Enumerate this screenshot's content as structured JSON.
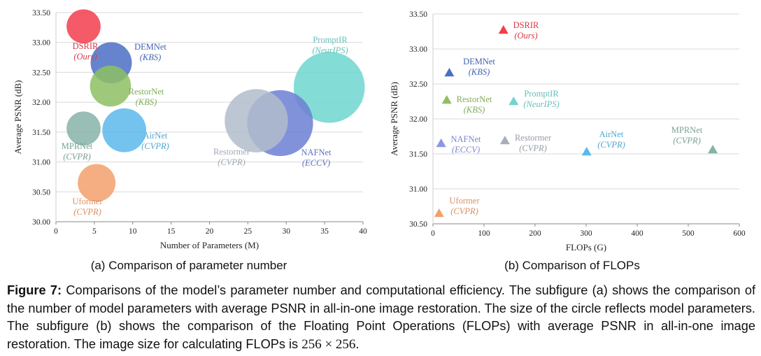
{
  "chart_data": [
    {
      "type": "scatter",
      "variant": "bubble",
      "subcaption": "(a) Comparison of parameter number",
      "xlabel": "Number of Parameters (M)",
      "ylabel": "Average PSNR (dB)",
      "xlim": [
        0,
        40
      ],
      "ylim": [
        30.0,
        33.5
      ],
      "xticks": [
        "0",
        "5",
        "10",
        "15",
        "20",
        "25",
        "30",
        "35",
        "40"
      ],
      "yticks": [
        "30.00",
        "30.50",
        "31.00",
        "31.50",
        "32.00",
        "32.50",
        "33.00",
        "33.50"
      ],
      "grid": "horizontal",
      "points": [
        {
          "name": "DSRIR",
          "venue": "(Ours)",
          "x": 3.6,
          "y": 33.27,
          "size": 3.6,
          "color": "#f23d4c"
        },
        {
          "name": "DEMNet",
          "venue": "(KBS)",
          "x": 7.2,
          "y": 32.66,
          "size": 7.2,
          "color": "#4a6fc4"
        },
        {
          "name": "RestorNet",
          "venue": "(KBS)",
          "x": 7.1,
          "y": 32.27,
          "size": 7.1,
          "color": "#8dbf63"
        },
        {
          "name": "MPRNet",
          "venue": "(CVPR)",
          "x": 3.6,
          "y": 31.56,
          "size": 3.6,
          "color": "#86b3a8"
        },
        {
          "name": "AirNet",
          "venue": "(CVPR)",
          "x": 8.9,
          "y": 31.53,
          "size": 8.9,
          "color": "#5cb8ec"
        },
        {
          "name": "Uformer",
          "venue": "(CVPR)",
          "x": 5.3,
          "y": 30.65,
          "size": 5.3,
          "color": "#f3a06b"
        },
        {
          "name": "NAFNet",
          "venue": "(ECCV)",
          "x": 29.2,
          "y": 31.65,
          "size": 29.2,
          "color": "#6c7fd3"
        },
        {
          "name": "Restormer",
          "venue": "(CVPR)",
          "x": 26.1,
          "y": 31.69,
          "size": 26.1,
          "color": "#b2bccb"
        },
        {
          "name": "PromptIR",
          "venue": "(NeurIPS)",
          "x": 35.6,
          "y": 32.25,
          "size": 35.6,
          "color": "#6fd6cf"
        }
      ]
    },
    {
      "type": "scatter",
      "subcaption": "(b) Comparison of FLOPs",
      "xlabel": "FLOPs (G)",
      "ylabel": "Average PSNR (dB)",
      "xlim": [
        0,
        600
      ],
      "ylim": [
        30.5,
        33.5
      ],
      "xticks": [
        "0",
        "100",
        "200",
        "300",
        "400",
        "500",
        "600"
      ],
      "yticks": [
        "30.50",
        "31.00",
        "31.50",
        "32.00",
        "32.50",
        "33.00",
        "33.50"
      ],
      "grid": "horizontal",
      "marker": "triangle",
      "points": [
        {
          "name": "DSRIR",
          "venue": "(Ours)",
          "x": 138,
          "y": 33.27,
          "color": "#f23d4c"
        },
        {
          "name": "DEMNet",
          "venue": "(KBS)",
          "x": 32,
          "y": 32.66,
          "color": "#4a6fc4"
        },
        {
          "name": "RestorNet",
          "venue": "(KBS)",
          "x": 27,
          "y": 32.27,
          "color": "#8dbf63"
        },
        {
          "name": "PromptIR",
          "venue": "(NeurIPS)",
          "x": 158,
          "y": 32.25,
          "color": "#6fd6cf"
        },
        {
          "name": "NAFNet",
          "venue": "(ECCV)",
          "x": 16,
          "y": 31.65,
          "color": "#8d97df"
        },
        {
          "name": "Restormer",
          "venue": "(CVPR)",
          "x": 141,
          "y": 31.69,
          "color": "#a7aebc"
        },
        {
          "name": "AirNet",
          "venue": "(CVPR)",
          "x": 301,
          "y": 31.53,
          "color": "#5cb8ec"
        },
        {
          "name": "MPRNet",
          "venue": "(CVPR)",
          "x": 548,
          "y": 31.56,
          "color": "#86b3a8"
        },
        {
          "name": "Uformer",
          "venue": "(CVPR)",
          "x": 12,
          "y": 30.65,
          "color": "#f3a06b"
        }
      ]
    }
  ],
  "caption": {
    "label": "Figure 7:",
    "text": "Comparisons of the model’s parameter number and computational efficiency. The subfigure (a) shows the comparison of the number of model parameters with average PSNR in all-in-one image restoration. The size of the circle reflects model parameters. The subfigure (b) shows the comparison of the Floating Point Operations (FLOPs) with average PSNR in all-in-one image restoration. The image size for calculating FLOPs is",
    "math": "256 × 256",
    "end": "."
  }
}
